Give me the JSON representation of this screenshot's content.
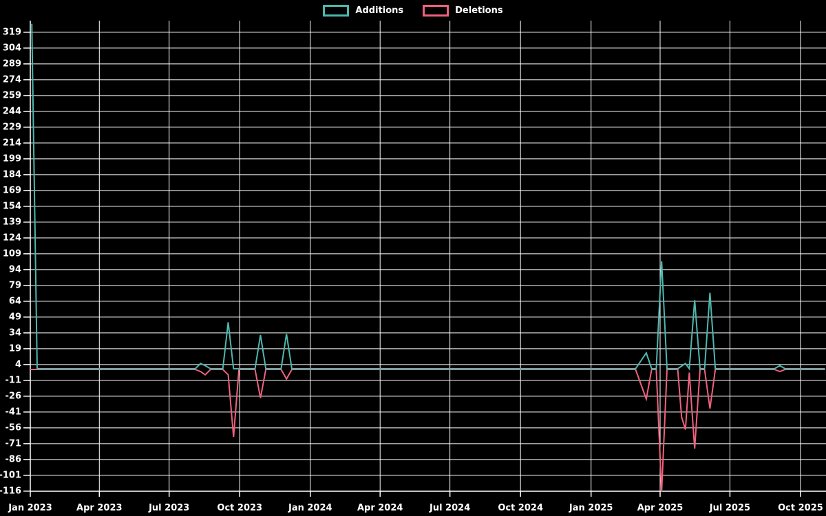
{
  "colors": {
    "background": "#000000",
    "grid": "#ffffff",
    "axis": "#ffffff",
    "text": "#ffffff",
    "additions": "#4db8ae",
    "deletions": "#f0617e"
  },
  "chart_data": {
    "type": "line",
    "title": "",
    "legend_position": "top-center",
    "grid": true,
    "legend": [
      {
        "label": "Additions",
        "color": "#4db8ae"
      },
      {
        "label": "Deletions",
        "color": "#f0617e"
      }
    ],
    "x_axis": {
      "unit": "days since Jan 1 2023",
      "range_days": [
        0,
        1036
      ],
      "ticks": [
        {
          "label": "Jan 2023",
          "day": 0
        },
        {
          "label": "Apr 2023",
          "day": 90
        },
        {
          "label": "Jul 2023",
          "day": 181
        },
        {
          "label": "Oct 2023",
          "day": 273
        },
        {
          "label": "Jan 2024",
          "day": 365
        },
        {
          "label": "Apr 2024",
          "day": 456
        },
        {
          "label": "Jul 2024",
          "day": 547
        },
        {
          "label": "Oct 2024",
          "day": 639
        },
        {
          "label": "Jan 2025",
          "day": 731
        },
        {
          "label": "Apr 2025",
          "day": 821
        },
        {
          "label": "Jul 2025",
          "day": 912
        },
        {
          "label": "Oct 2025",
          "day": 1004
        }
      ]
    },
    "y_axis": {
      "min": -116,
      "max": 319,
      "step": 15,
      "ticks": [
        -116,
        -101,
        -86,
        -71,
        -56,
        -41,
        -26,
        -11,
        4,
        19,
        34,
        49,
        64,
        79,
        94,
        109,
        124,
        139,
        154,
        169,
        184,
        199,
        214,
        229,
        244,
        259,
        274,
        289,
        304,
        319
      ]
    },
    "series": [
      {
        "name": "Additions",
        "color": "#4db8ae",
        "points": [
          [
            2,
            327
          ],
          [
            9,
            0
          ],
          [
            215,
            0
          ],
          [
            222,
            5
          ],
          [
            228,
            3
          ],
          [
            235,
            0
          ],
          [
            251,
            0
          ],
          [
            258,
            44
          ],
          [
            265,
            0
          ],
          [
            293,
            0
          ],
          [
            300,
            32
          ],
          [
            307,
            0
          ],
          [
            327,
            0
          ],
          [
            334,
            33
          ],
          [
            341,
            0
          ],
          [
            789,
            0
          ],
          [
            803,
            15
          ],
          [
            810,
            0
          ],
          [
            816,
            0
          ],
          [
            823,
            102
          ],
          [
            830,
            0
          ],
          [
            844,
            0
          ],
          [
            854,
            5
          ],
          [
            859,
            0
          ],
          [
            866,
            65
          ],
          [
            873,
            0
          ],
          [
            879,
            0
          ],
          [
            886,
            72
          ],
          [
            893,
            0
          ],
          [
            970,
            0
          ],
          [
            977,
            3
          ],
          [
            984,
            0
          ],
          [
            1036,
            0
          ]
        ]
      },
      {
        "name": "Deletions",
        "color": "#f0617e",
        "points": [
          [
            0,
            0
          ],
          [
            215,
            0
          ],
          [
            222,
            -2
          ],
          [
            228,
            -5
          ],
          [
            235,
            0
          ],
          [
            251,
            0
          ],
          [
            258,
            -5
          ],
          [
            265,
            -64
          ],
          [
            272,
            0
          ],
          [
            293,
            0
          ],
          [
            300,
            -27
          ],
          [
            307,
            0
          ],
          [
            327,
            0
          ],
          [
            334,
            -9
          ],
          [
            341,
            0
          ],
          [
            789,
            0
          ],
          [
            803,
            -28
          ],
          [
            810,
            0
          ],
          [
            816,
            0
          ],
          [
            823,
            -116
          ],
          [
            830,
            0
          ],
          [
            844,
            0
          ],
          [
            849,
            -45
          ],
          [
            854,
            -57
          ],
          [
            859,
            -3
          ],
          [
            866,
            -75
          ],
          [
            873,
            0
          ],
          [
            879,
            0
          ],
          [
            886,
            -37
          ],
          [
            893,
            0
          ],
          [
            970,
            0
          ],
          [
            977,
            -2
          ],
          [
            984,
            0
          ],
          [
            1036,
            0
          ]
        ]
      }
    ]
  }
}
